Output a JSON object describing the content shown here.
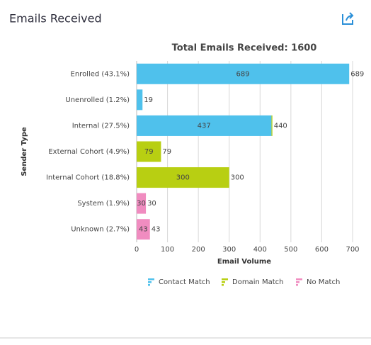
{
  "header": {
    "title": "Emails Received"
  },
  "chart_data": {
    "type": "bar",
    "orientation": "horizontal",
    "stacked": true,
    "title": "Total Emails Received: 1600",
    "x_label": "Email Volume",
    "y_label": "Sender Type",
    "categories": [
      "Enrolled (43.1%)",
      "Unenrolled (1.2%)",
      "Internal (27.5%)",
      "External Cohort (4.9%)",
      "Internal Cohort (18.8%)",
      "System (1.9%)",
      "Unknown (2.7%)"
    ],
    "series": [
      {
        "name": "Contact Match",
        "color": "#4fc1ec",
        "values": [
          689,
          19,
          437,
          0,
          0,
          0,
          0
        ]
      },
      {
        "name": "Domain Match",
        "color": "#b8cf12",
        "values": [
          0,
          0,
          3,
          79,
          300,
          0,
          0
        ]
      },
      {
        "name": "No Match",
        "color": "#f08cc0",
        "values": [
          0,
          0,
          0,
          0,
          0,
          30,
          43
        ]
      }
    ],
    "totals": [
      689,
      19,
      440,
      79,
      300,
      30,
      43
    ],
    "xlim": [
      0,
      700
    ],
    "xticks": [
      0,
      100,
      200,
      300,
      400,
      500,
      600,
      700
    ],
    "grid": true
  }
}
